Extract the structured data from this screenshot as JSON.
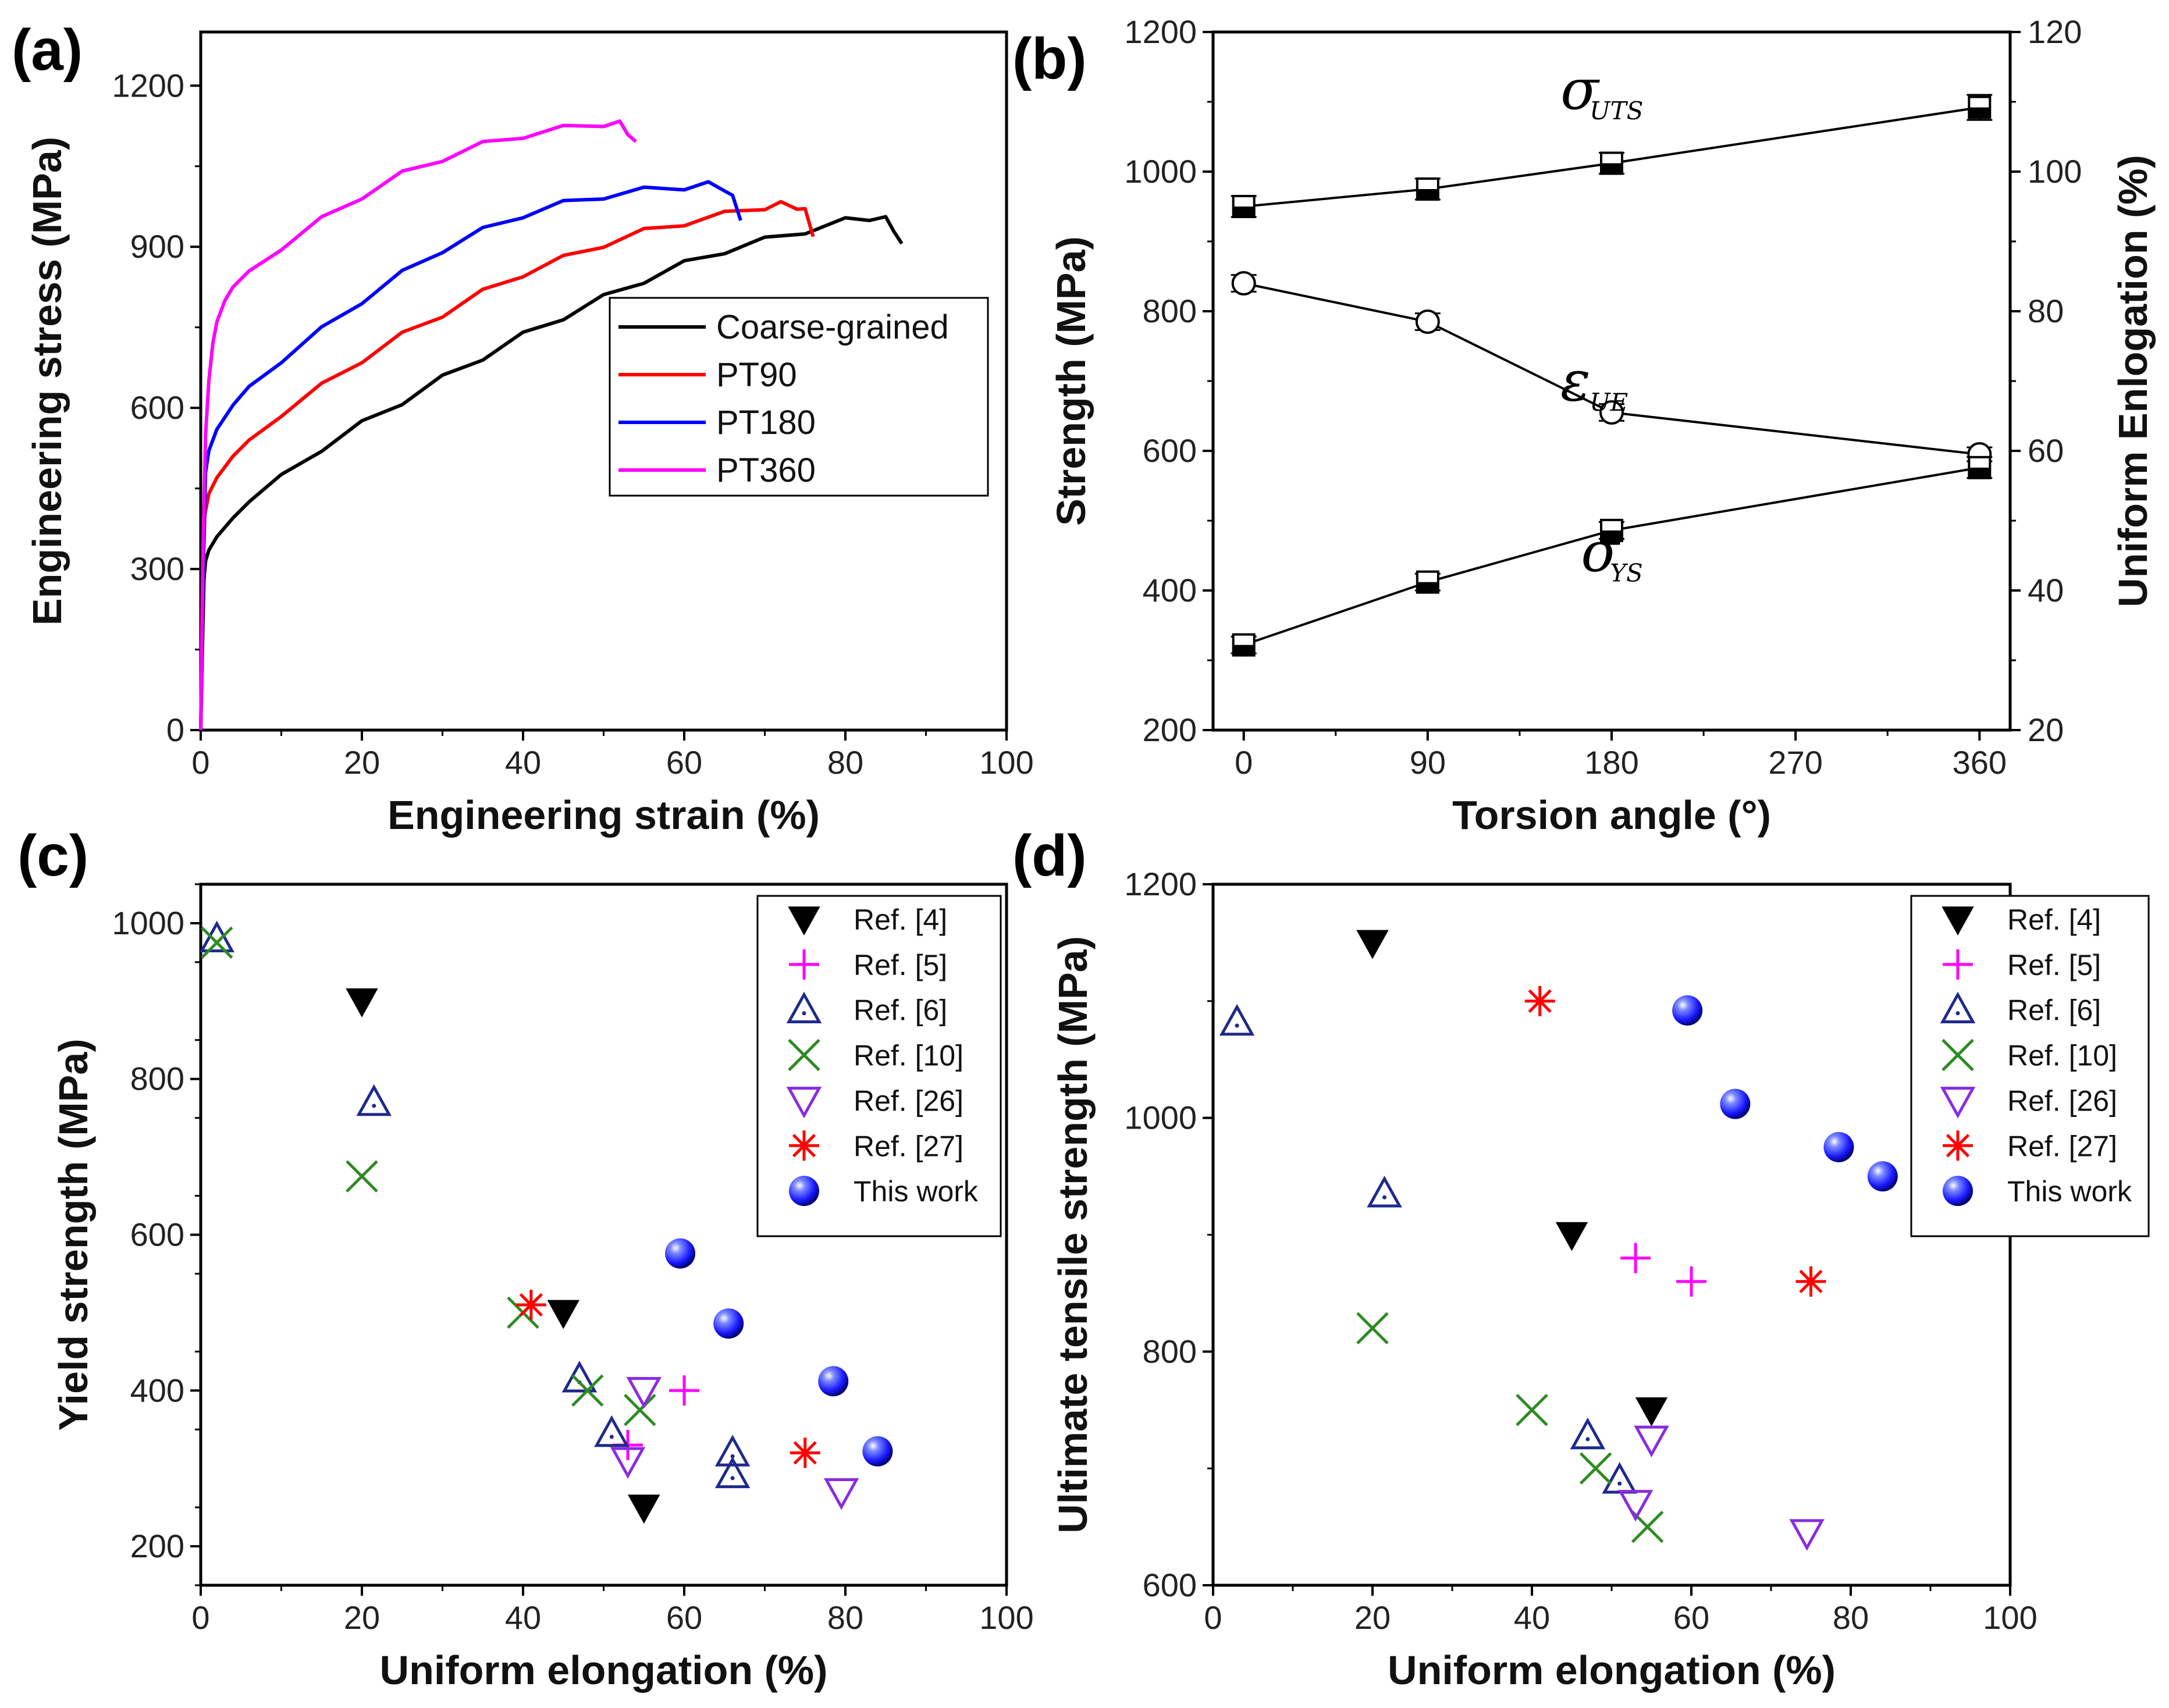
{
  "panels": {
    "a": {
      "label": "(a)"
    },
    "b": {
      "label": "(b)"
    },
    "c": {
      "label": "(c)"
    },
    "d": {
      "label": "(d)"
    }
  },
  "chart_data": [
    {
      "id": "a",
      "type": "line",
      "title": "",
      "xlabel": "Engineering strain (%)",
      "ylabel": "Engineering stress (MPa)",
      "xlim": [
        0,
        100
      ],
      "ylim": [
        0,
        1300
      ],
      "xticks": [
        0,
        20,
        40,
        60,
        80,
        100
      ],
      "yticks": [
        0,
        300,
        600,
        900,
        1200
      ],
      "legend_position": "center-right",
      "series": [
        {
          "name": "Coarse-grained",
          "color": "#000000",
          "x": [
            0,
            0.2,
            0.4,
            0.6,
            1,
            2,
            4,
            6,
            10,
            15,
            20,
            25,
            30,
            35,
            40,
            45,
            50,
            55,
            60,
            65,
            70,
            75,
            80,
            83,
            85,
            86,
            87
          ],
          "y": [
            0,
            150,
            280,
            315,
            335,
            360,
            395,
            425,
            470,
            525,
            570,
            612,
            655,
            695,
            735,
            770,
            805,
            838,
            868,
            893,
            912,
            930,
            948,
            955,
            950,
            935,
            900
          ]
        },
        {
          "name": "PT90",
          "color": "#ff0000",
          "x": [
            0,
            0.2,
            0.5,
            1,
            2,
            4,
            6,
            10,
            15,
            20,
            25,
            30,
            35,
            40,
            45,
            50,
            55,
            60,
            65,
            70,
            72,
            74,
            75,
            76
          ],
          "y": [
            0,
            250,
            400,
            440,
            470,
            510,
            540,
            590,
            640,
            690,
            735,
            775,
            815,
            850,
            878,
            905,
            928,
            945,
            960,
            975,
            978,
            976,
            965,
            925
          ]
        },
        {
          "name": "PT180",
          "color": "#0000ff",
          "x": [
            0,
            0.3,
            0.6,
            1,
            2,
            4,
            6,
            10,
            15,
            20,
            25,
            30,
            35,
            40,
            45,
            50,
            55,
            60,
            63,
            65,
            66,
            67
          ],
          "y": [
            0,
            300,
            480,
            520,
            560,
            605,
            640,
            690,
            745,
            800,
            850,
            895,
            930,
            960,
            980,
            995,
            1005,
            1012,
            1015,
            1010,
            990,
            955
          ]
        },
        {
          "name": "PT360",
          "color": "#ff00ff",
          "x": [
            0,
            0.3,
            0.6,
            1,
            1.5,
            2,
            3,
            4,
            6,
            10,
            15,
            20,
            25,
            30,
            35,
            40,
            45,
            50,
            52,
            53,
            54
          ],
          "y": [
            0,
            350,
            550,
            650,
            720,
            760,
            800,
            825,
            855,
            900,
            950,
            995,
            1035,
            1065,
            1090,
            1108,
            1120,
            1130,
            1128,
            1115,
            1090
          ]
        }
      ]
    },
    {
      "id": "b",
      "type": "line",
      "title": "",
      "xlabel": "Torsion angle (°)",
      "ylabel": "Strength (MPa)",
      "y2label": "Uniform Enlogation (%)",
      "xlim": [
        -15,
        375
      ],
      "ylim": [
        200,
        1200
      ],
      "y2lim": [
        20,
        120
      ],
      "xticks": [
        0,
        90,
        180,
        270,
        360
      ],
      "yticks": [
        200,
        400,
        600,
        800,
        1000,
        1200
      ],
      "y2ticks": [
        20,
        40,
        60,
        80,
        100,
        120
      ],
      "series": [
        {
          "name": "σ_UTS",
          "label_main": "σ",
          "label_sub": "UTS",
          "axis": "left",
          "marker": "half-filled-square",
          "x": [
            0,
            90,
            180,
            360
          ],
          "y": [
            950,
            975,
            1012,
            1092
          ],
          "err": [
            15,
            15,
            15,
            18
          ]
        },
        {
          "name": "ε_UE",
          "label_main": "ε",
          "label_sub": "UE",
          "axis": "right",
          "marker": "open-circle",
          "x": [
            0,
            90,
            180,
            360
          ],
          "y": [
            84,
            78.5,
            65.5,
            59.5
          ],
          "err": [
            1.2,
            1.2,
            1.2,
            1.0
          ]
        },
        {
          "name": "σ_YS",
          "label_main": "σ",
          "label_sub": "YS",
          "axis": "left",
          "marker": "half-filled-square",
          "x": [
            0,
            90,
            180,
            360
          ],
          "y": [
            322,
            412,
            486,
            576
          ],
          "err": [
            12,
            12,
            12,
            15
          ]
        }
      ]
    },
    {
      "id": "c",
      "type": "scatter",
      "title": "",
      "xlabel": "Uniform elongation (%)",
      "ylabel": "Yield strength (MPa)",
      "xlim": [
        0,
        100
      ],
      "ylim": [
        150,
        1050
      ],
      "xticks": [
        0,
        20,
        40,
        60,
        80,
        100
      ],
      "yticks": [
        200,
        400,
        600,
        800,
        1000
      ],
      "legend_position": "top-right",
      "series": [
        {
          "name": "Ref. [4]",
          "marker": "filled-down-triangle",
          "color": "#000000",
          "x": [
            20,
            45,
            55
          ],
          "y": [
            900,
            500,
            250
          ]
        },
        {
          "name": "Ref. [5]",
          "marker": "plus",
          "color": "#ff00ff",
          "x": [
            53,
            60
          ],
          "y": [
            330,
            400
          ]
        },
        {
          "name": "Ref. [6]",
          "marker": "open-up-triangle-dot",
          "color": "#1f2a8c",
          "x": [
            2,
            21.5,
            47,
            51,
            66,
            66
          ],
          "y": [
            980,
            770,
            415,
            345,
            320,
            292
          ]
        },
        {
          "name": "Ref. [10]",
          "marker": "cross",
          "color": "#2e8b22",
          "x": [
            2,
            20,
            40,
            48,
            54.5
          ],
          "y": [
            975,
            675,
            500,
            400,
            375
          ]
        },
        {
          "name": "Ref. [26]",
          "marker": "open-down-triangle",
          "color": "#8a2be2",
          "x": [
            53,
            55,
            79.5
          ],
          "y": [
            310,
            400,
            270
          ]
        },
        {
          "name": "Ref. [27]",
          "marker": "asterisk",
          "color": "#ff0000",
          "x": [
            41,
            75
          ],
          "y": [
            510,
            320
          ]
        },
        {
          "name": "This work",
          "marker": "blue-sphere",
          "color": "#1a1aff",
          "x": [
            59.5,
            65.5,
            78.5,
            84
          ],
          "y": [
            576,
            486,
            412,
            322
          ]
        }
      ]
    },
    {
      "id": "d",
      "type": "scatter",
      "title": "",
      "xlabel": "Uniform elongation (%)",
      "ylabel": "Ultimate tensile strength (MPa)",
      "xlim": [
        0,
        100
      ],
      "ylim": [
        600,
        1200
      ],
      "xticks": [
        0,
        20,
        40,
        60,
        80,
        100
      ],
      "yticks": [
        600,
        800,
        1000,
        1200
      ],
      "legend_position": "top-right",
      "series": [
        {
          "name": "Ref. [4]",
          "marker": "filled-down-triangle",
          "color": "#000000",
          "x": [
            20,
            45,
            55
          ],
          "y": [
            1150,
            900,
            750
          ]
        },
        {
          "name": "Ref. [5]",
          "marker": "plus",
          "color": "#ff00ff",
          "x": [
            53,
            60
          ],
          "y": [
            880,
            860
          ]
        },
        {
          "name": "Ref. [6]",
          "marker": "open-up-triangle-dot",
          "color": "#1f2a8c",
          "x": [
            3,
            21.5,
            47,
            51
          ],
          "y": [
            1082,
            935,
            728,
            690
          ]
        },
        {
          "name": "Ref. [10]",
          "marker": "cross",
          "color": "#2e8b22",
          "x": [
            20,
            40,
            48,
            54.5
          ],
          "y": [
            820,
            750,
            700,
            650
          ]
        },
        {
          "name": "Ref. [26]",
          "marker": "open-down-triangle",
          "color": "#8a2be2",
          "x": [
            53,
            55,
            74.5
          ],
          "y": [
            670,
            725,
            645
          ]
        },
        {
          "name": "Ref. [27]",
          "marker": "asterisk",
          "color": "#ff0000",
          "x": [
            41,
            75
          ],
          "y": [
            1100,
            860
          ]
        },
        {
          "name": "This work",
          "marker": "blue-sphere",
          "color": "#1a1aff",
          "x": [
            59.5,
            65.5,
            78.5,
            84
          ],
          "y": [
            1092,
            1012,
            975,
            950
          ]
        }
      ]
    }
  ]
}
